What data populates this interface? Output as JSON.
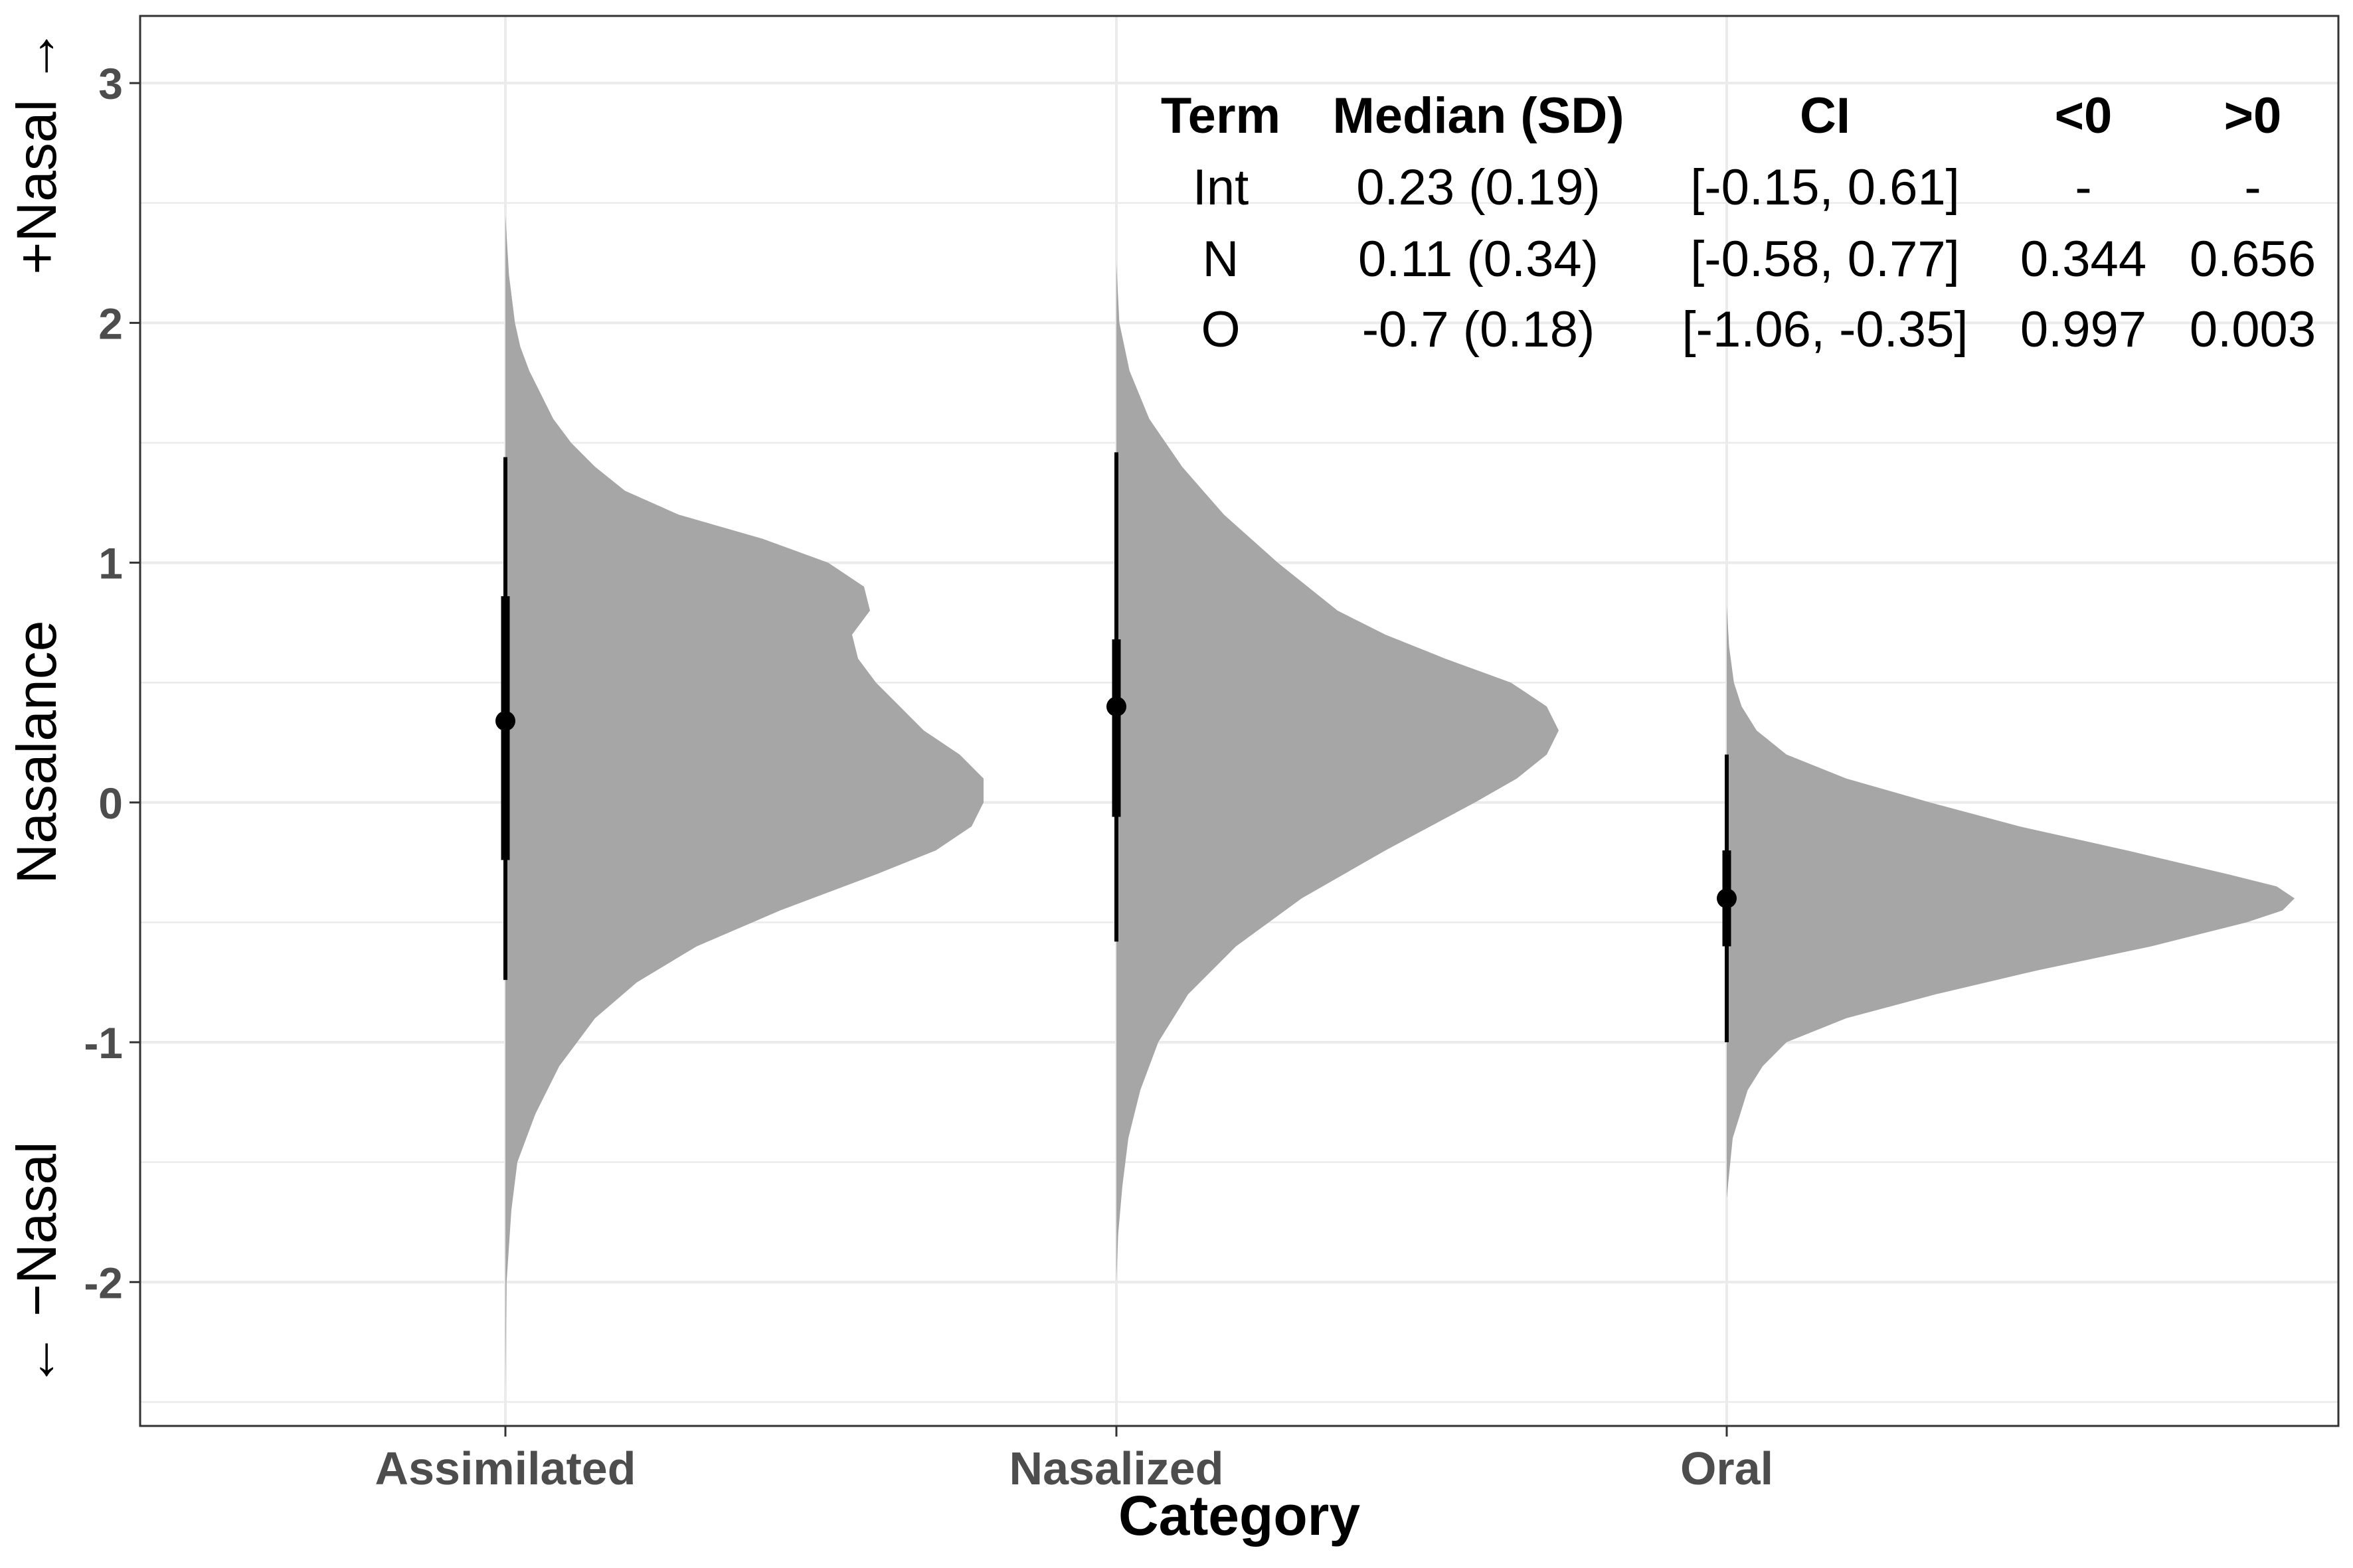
{
  "chart_data": {
    "type": "half-violin (posterior distribution) with point interval",
    "xlabel": "Category",
    "ylabel": "Nasalance",
    "side_labels": {
      "top": "+Nasal →",
      "bottom": "← −Nasal"
    },
    "categories": [
      "Assimilated",
      "Nasalized",
      "Oral"
    ],
    "ylim": [
      -2.6,
      3.28
    ],
    "y_ticks": [
      -2,
      -1,
      0,
      1,
      2,
      3
    ],
    "grid": true,
    "colors": {
      "density": "#a6a6a6",
      "interval": "#000000",
      "grid": "#ebebeb",
      "panel_border": "#333333"
    },
    "series": [
      {
        "category": "Assimilated",
        "median": 0.34,
        "interval_66": [
          -0.24,
          0.86
        ],
        "interval_95": [
          -0.74,
          1.44
        ],
        "density": [
          [
            -2.45,
            0.0
          ],
          [
            -2.0,
            0.002
          ],
          [
            -1.7,
            0.01
          ],
          [
            -1.5,
            0.02
          ],
          [
            -1.3,
            0.05
          ],
          [
            -1.1,
            0.09
          ],
          [
            -0.9,
            0.15
          ],
          [
            -0.75,
            0.22
          ],
          [
            -0.6,
            0.32
          ],
          [
            -0.45,
            0.46
          ],
          [
            -0.3,
            0.62
          ],
          [
            -0.2,
            0.72
          ],
          [
            -0.1,
            0.78
          ],
          [
            0.0,
            0.8
          ],
          [
            0.1,
            0.8
          ],
          [
            0.2,
            0.76
          ],
          [
            0.3,
            0.7
          ],
          [
            0.4,
            0.66
          ],
          [
            0.5,
            0.62
          ],
          [
            0.6,
            0.59
          ],
          [
            0.7,
            0.58
          ],
          [
            0.8,
            0.61
          ],
          [
            0.9,
            0.6
          ],
          [
            1.0,
            0.54
          ],
          [
            1.1,
            0.43
          ],
          [
            1.2,
            0.29
          ],
          [
            1.3,
            0.2
          ],
          [
            1.4,
            0.15
          ],
          [
            1.5,
            0.11
          ],
          [
            1.6,
            0.08
          ],
          [
            1.7,
            0.06
          ],
          [
            1.8,
            0.04
          ],
          [
            1.9,
            0.025
          ],
          [
            2.0,
            0.016
          ],
          [
            2.2,
            0.006
          ],
          [
            2.45,
            0.0
          ]
        ]
      },
      {
        "category": "Nasalized",
        "median": 0.4,
        "interval_66": [
          -0.06,
          0.68
        ],
        "interval_95": [
          -0.58,
          1.46
        ],
        "density": [
          [
            -2.0,
            0.0
          ],
          [
            -1.8,
            0.003
          ],
          [
            -1.6,
            0.01
          ],
          [
            -1.4,
            0.02
          ],
          [
            -1.2,
            0.04
          ],
          [
            -1.0,
            0.07
          ],
          [
            -0.8,
            0.12
          ],
          [
            -0.6,
            0.2
          ],
          [
            -0.4,
            0.31
          ],
          [
            -0.2,
            0.45
          ],
          [
            0.0,
            0.6
          ],
          [
            0.1,
            0.67
          ],
          [
            0.2,
            0.72
          ],
          [
            0.3,
            0.74
          ],
          [
            0.4,
            0.72
          ],
          [
            0.5,
            0.66
          ],
          [
            0.6,
            0.55
          ],
          [
            0.7,
            0.45
          ],
          [
            0.8,
            0.37
          ],
          [
            1.0,
            0.27
          ],
          [
            1.2,
            0.18
          ],
          [
            1.4,
            0.11
          ],
          [
            1.6,
            0.055
          ],
          [
            1.8,
            0.022
          ],
          [
            2.0,
            0.005
          ],
          [
            2.25,
            0.0
          ]
        ]
      },
      {
        "category": "Oral",
        "median": -0.4,
        "interval_66": [
          -0.6,
          -0.2
        ],
        "interval_95": [
          -1.0,
          0.2
        ],
        "density": [
          [
            -1.65,
            0.0
          ],
          [
            -1.4,
            0.01
          ],
          [
            -1.2,
            0.035
          ],
          [
            -1.1,
            0.06
          ],
          [
            -1.0,
            0.1
          ],
          [
            -0.9,
            0.2
          ],
          [
            -0.8,
            0.35
          ],
          [
            -0.7,
            0.52
          ],
          [
            -0.6,
            0.71
          ],
          [
            -0.5,
            0.87
          ],
          [
            -0.45,
            0.93
          ],
          [
            -0.4,
            0.95
          ],
          [
            -0.35,
            0.92
          ],
          [
            -0.3,
            0.84
          ],
          [
            -0.2,
            0.67
          ],
          [
            -0.1,
            0.49
          ],
          [
            0.0,
            0.34
          ],
          [
            0.1,
            0.2
          ],
          [
            0.2,
            0.1
          ],
          [
            0.3,
            0.05
          ],
          [
            0.4,
            0.025
          ],
          [
            0.5,
            0.012
          ],
          [
            0.65,
            0.004
          ],
          [
            0.82,
            0.0
          ]
        ]
      }
    ],
    "table": {
      "headers": [
        "Term",
        "Median (SD)",
        "CI",
        "<0",
        ">0"
      ],
      "rows": [
        [
          "Int",
          "0.23 (0.19)",
          "[-0.15, 0.61]",
          "-",
          "-"
        ],
        [
          "N",
          "0.11 (0.34)",
          "[-0.58, 0.77]",
          "0.344",
          "0.656"
        ],
        [
          "O",
          "-0.7 (0.18)",
          "[-1.06, -0.35]",
          "0.997",
          "0.003"
        ]
      ]
    }
  }
}
